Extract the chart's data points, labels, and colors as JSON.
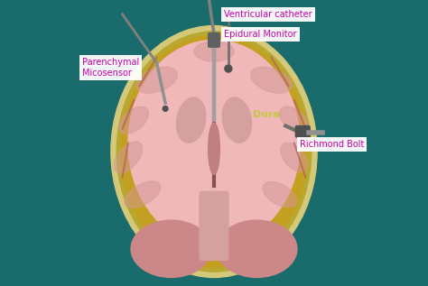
{
  "bg_color": "#1a6b6b",
  "skull_color": "#d4c87a",
  "skull_inner_color": "#b8a830",
  "brain_color": "#f0b8b8",
  "ventricle_color": "#d4a0a0",
  "brainstem_color": "#d4a0a0",
  "cerebellum_color": "#cc8888",
  "label_color_pink": "#cc00aa",
  "figsize": [
    4.74,
    3.17
  ],
  "dpi": 100,
  "convolutions": [
    [
      0.3,
      0.72,
      0.15,
      0.08,
      20
    ],
    [
      0.22,
      0.58,
      0.12,
      0.07,
      40
    ],
    [
      0.2,
      0.45,
      0.13,
      0.07,
      50
    ],
    [
      0.25,
      0.32,
      0.14,
      0.07,
      30
    ],
    [
      0.7,
      0.72,
      0.15,
      0.08,
      -20
    ],
    [
      0.78,
      0.58,
      0.12,
      0.07,
      -40
    ],
    [
      0.78,
      0.45,
      0.12,
      0.07,
      -50
    ],
    [
      0.73,
      0.32,
      0.13,
      0.07,
      -30
    ],
    [
      0.5,
      0.82,
      0.14,
      0.07,
      0
    ]
  ],
  "sulci": [
    [
      [
        0.3,
        0.8
      ],
      [
        0.24,
        0.7
      ]
    ],
    [
      [
        0.22,
        0.65
      ],
      [
        0.18,
        0.55
      ]
    ],
    [
      [
        0.2,
        0.5
      ],
      [
        0.18,
        0.38
      ]
    ],
    [
      [
        0.7,
        0.8
      ],
      [
        0.76,
        0.7
      ]
    ],
    [
      [
        0.78,
        0.65
      ],
      [
        0.82,
        0.55
      ]
    ],
    [
      [
        0.78,
        0.5
      ],
      [
        0.82,
        0.38
      ]
    ]
  ]
}
